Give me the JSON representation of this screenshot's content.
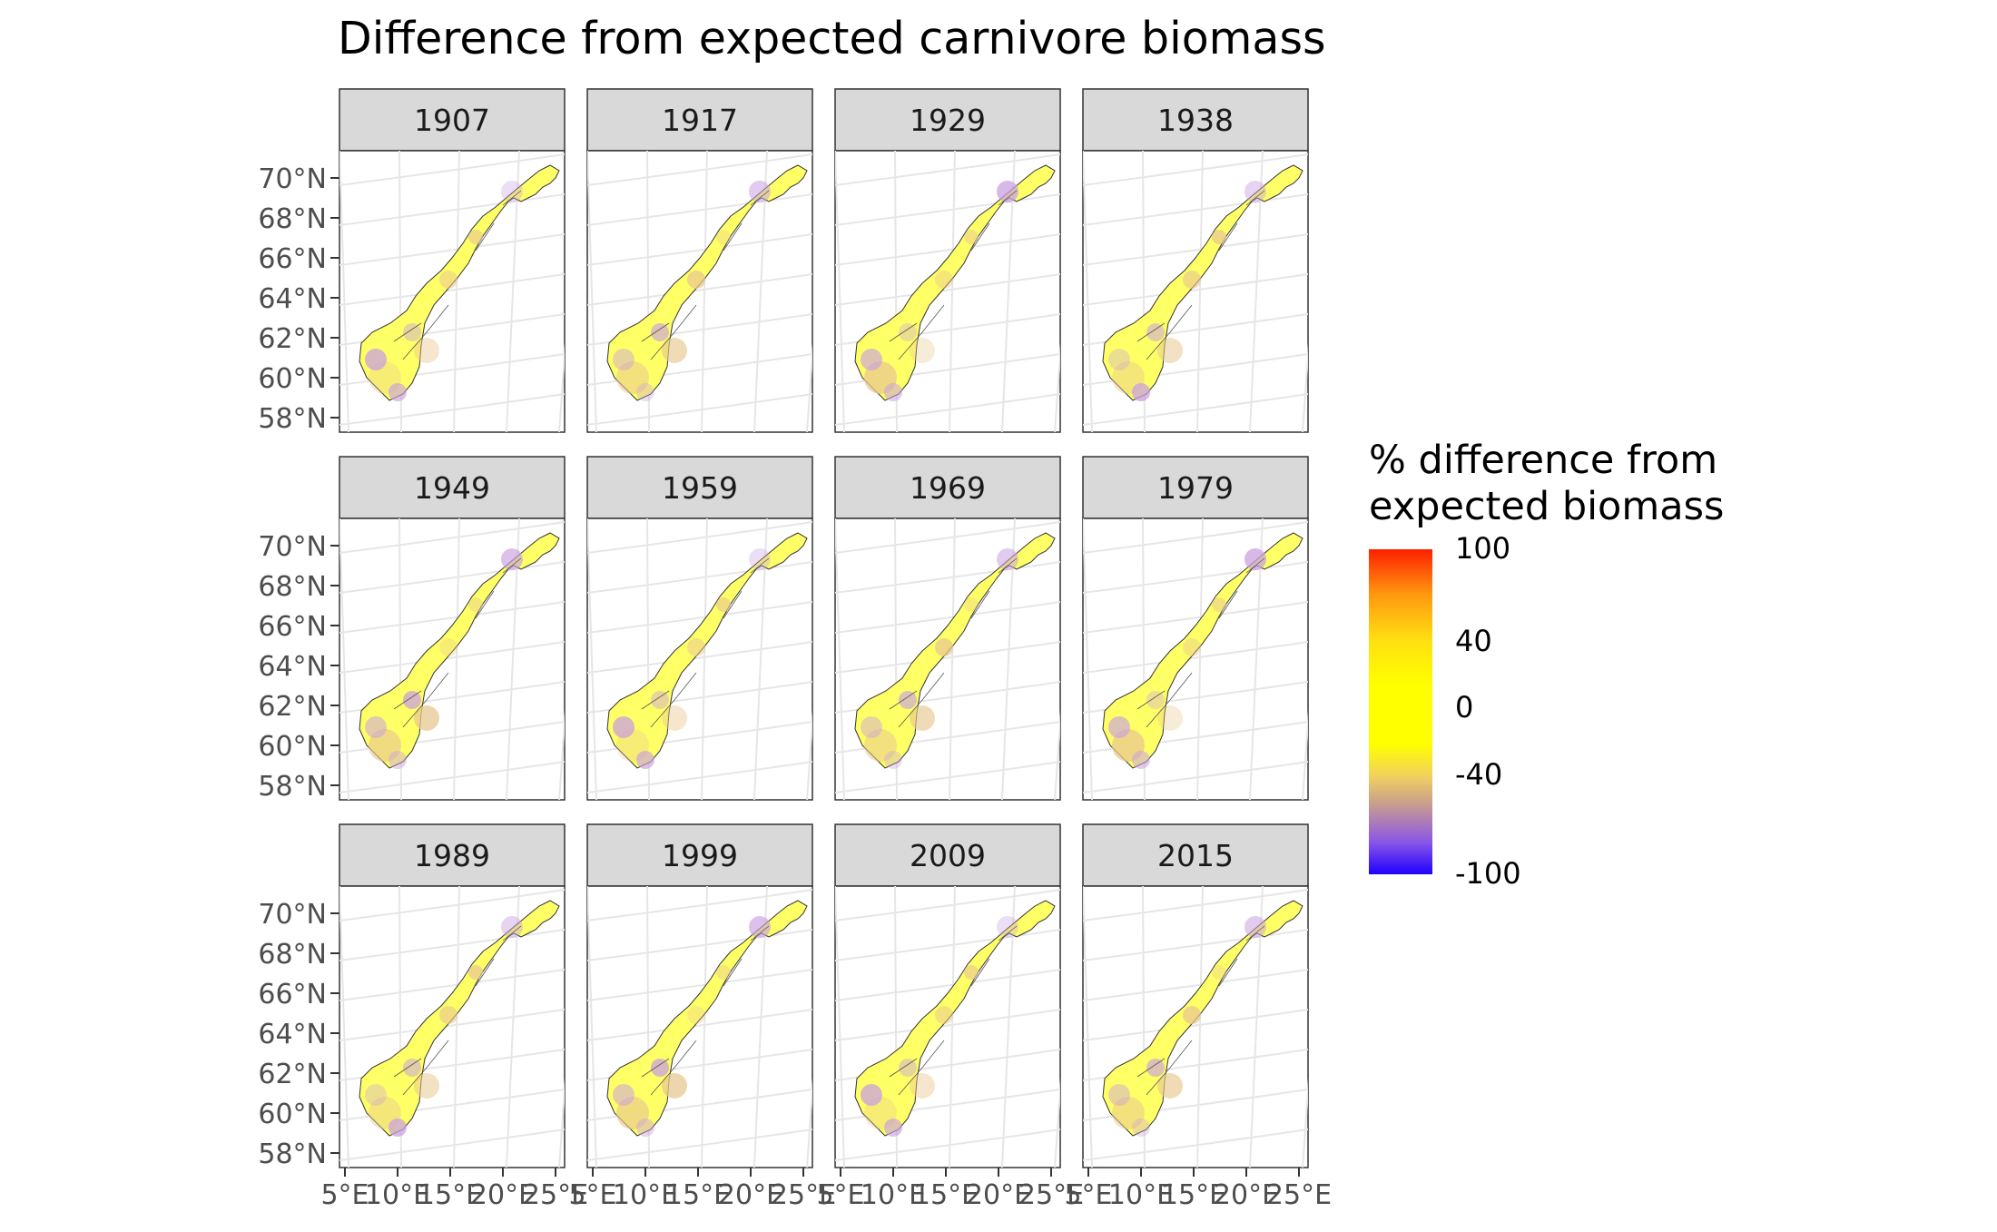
{
  "title": "Difference from expected carnivore biomass",
  "panels": [
    "1907",
    "1917",
    "1929",
    "1938",
    "1949",
    "1959",
    "1969",
    "1979",
    "1989",
    "1999",
    "2009",
    "2015"
  ],
  "lat_labels": [
    "70°N",
    "68°N",
    "66°N",
    "64°N",
    "62°N",
    "60°N",
    "58°N"
  ],
  "lon_labels": [
    "5°E",
    "10°E",
    "15°E",
    "20°E",
    "25°E"
  ],
  "legend": {
    "title_line1": "% difference from",
    "title_line2": "expected biomass",
    "ticks": [
      "100",
      "40",
      "0",
      "-40",
      "-100"
    ],
    "tick_values": [
      100,
      40,
      0,
      -40,
      -100
    ],
    "colors": {
      "low": "#1f00ff",
      "mid_low": "#caa08b",
      "zero": "#ffff00",
      "high": "#ff2000"
    }
  },
  "colors": {
    "strip_bg": "#d9d9d9",
    "panel_border": "#333333",
    "grid": "#e6e6e6",
    "land_yellow": "#ffff66"
  }
}
